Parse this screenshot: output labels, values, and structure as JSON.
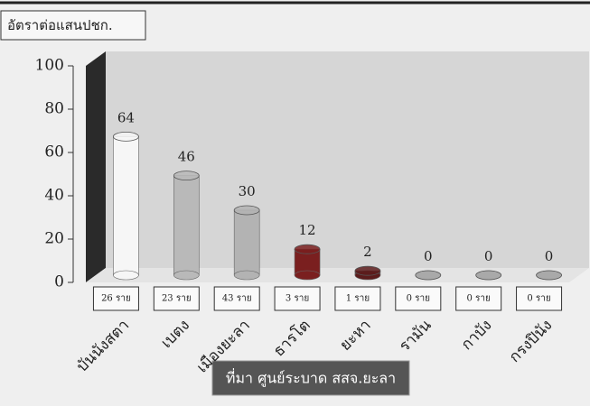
{
  "chart_data": {
    "type": "bar",
    "y_axis_label": "อัตราต่อแสนปชก.",
    "categories": [
      "บันนังสตา",
      "เบตง",
      "เมืองยะลา",
      "ธารโต",
      "ยะหา",
      "รามัน",
      "กาบัง",
      "กรงปินัง"
    ],
    "values": [
      64,
      46,
      30,
      12,
      2,
      0,
      0,
      0
    ],
    "case_labels": [
      "26 ราย",
      "23 ราย",
      "43 ราย",
      "3 ราย",
      "1 ราย",
      "0 ราย",
      "0 ราย",
      "0 ราย"
    ],
    "colors": [
      "#f6f6f6",
      "#b9b9b9",
      "#b3b3b3",
      "#7a1f1f",
      "#5c1c1c",
      "#a9a9a9",
      "#a9a9a9",
      "#a9a9a9"
    ],
    "source": "ที่มา ศูนย์ระบาด สสจ.ยะลา",
    "ylim": [
      0,
      100
    ],
    "yticks": [
      0,
      20,
      40,
      60,
      80,
      100
    ],
    "grid": false
  }
}
